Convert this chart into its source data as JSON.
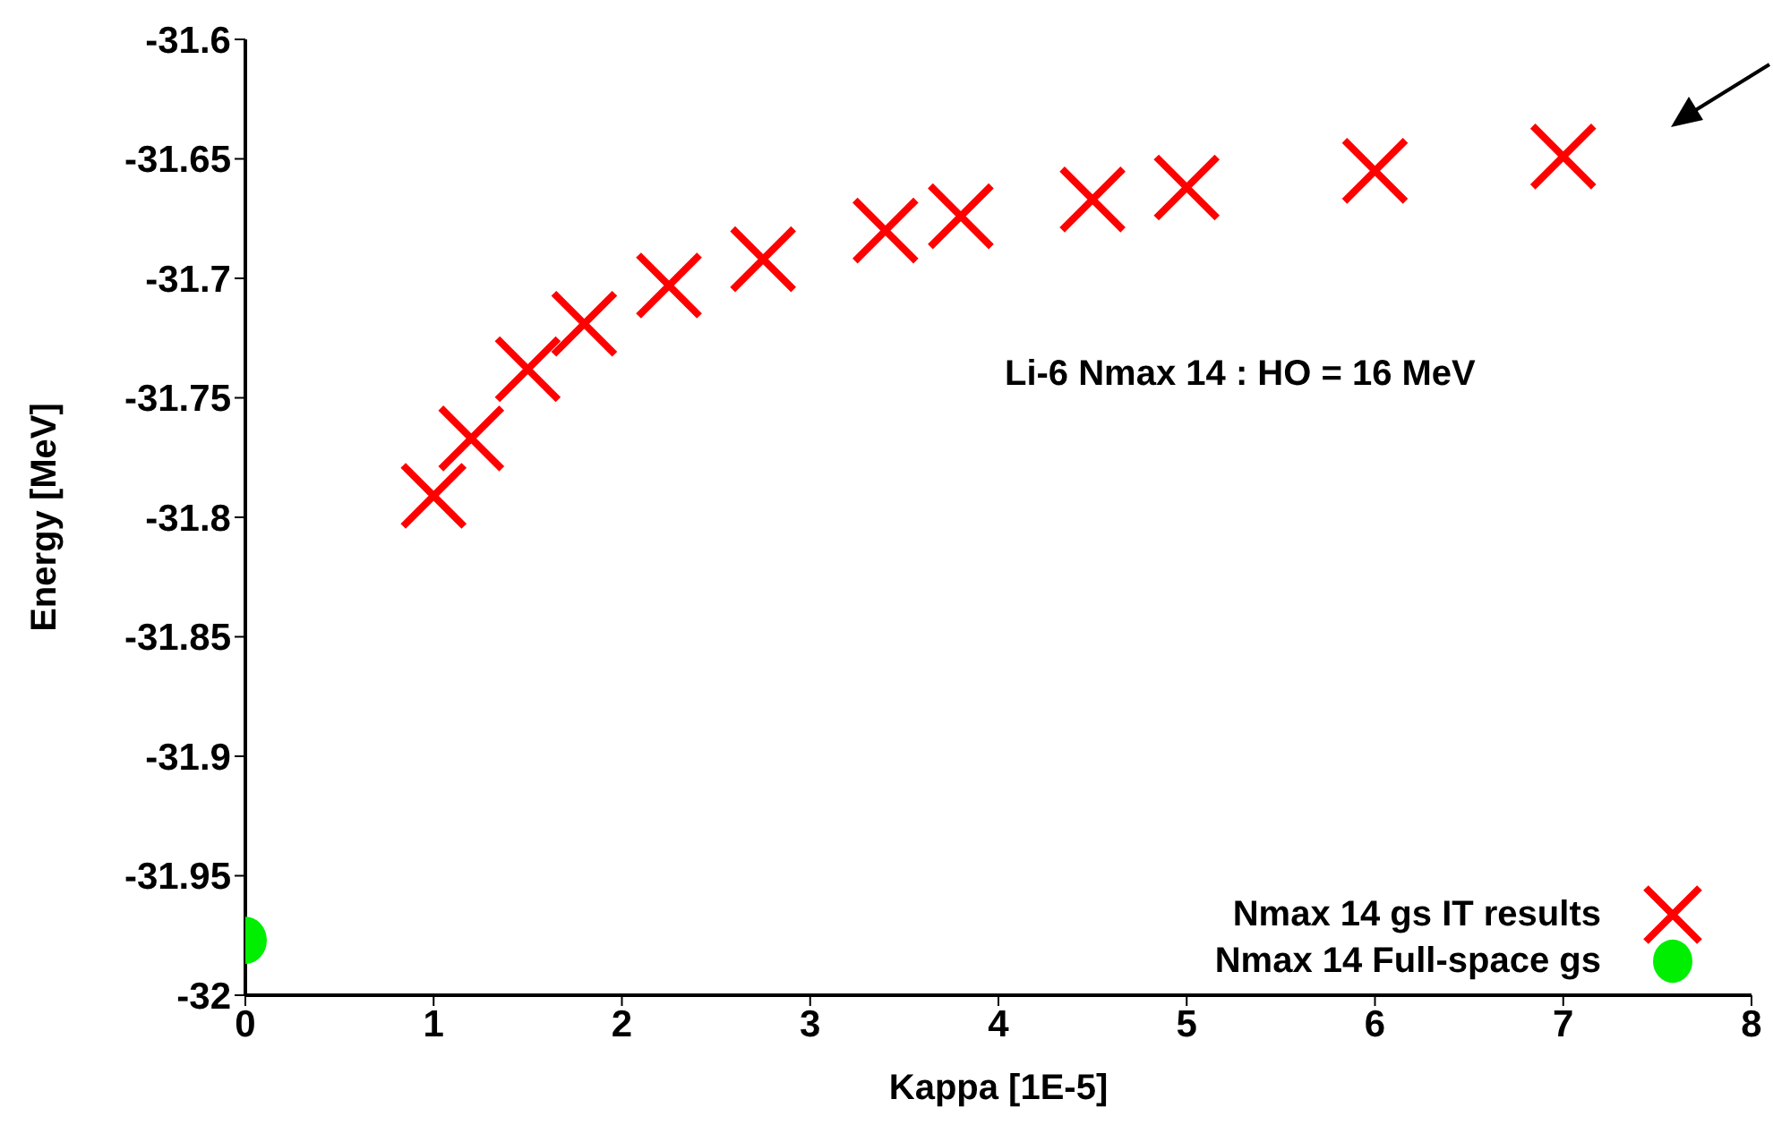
{
  "chart_data": {
    "type": "scatter",
    "xlabel": "Kappa [1E-5]",
    "ylabel": "Energy [MeV]",
    "annotations": [
      "Li-6 Nmax 14 : HO = 16 MeV"
    ],
    "xlim": [
      0,
      8
    ],
    "xticks": [
      0,
      1,
      2,
      3,
      4,
      5,
      6,
      7,
      8
    ],
    "ylim": [
      -32,
      -31.6
    ],
    "yticks": [
      -32,
      -31.95,
      -31.9,
      -31.85,
      -31.8,
      -31.75,
      -31.7,
      -31.65,
      -31.6
    ],
    "legend": "bottom right",
    "grid": false,
    "series": [
      {
        "name": "Nmax 14 gs IT results",
        "color": "#ff0000",
        "marker": "cross",
        "x": [
          1,
          1.2,
          1.5,
          1.8,
          2.25,
          2.75,
          3.4,
          3.8,
          4.5,
          5,
          6,
          7
        ],
        "values": [
          -31.791,
          -31.767,
          -31.738,
          -31.719,
          -31.703,
          -31.692,
          -31.68,
          -31.674,
          -31.667,
          -31.662,
          -31.655,
          -31.649
        ]
      },
      {
        "name": "Nmax 14 Full-space gs",
        "color": "#00ee00",
        "marker": "circle",
        "x": [
          0
        ],
        "values": [
          -31.977
        ]
      }
    ]
  }
}
